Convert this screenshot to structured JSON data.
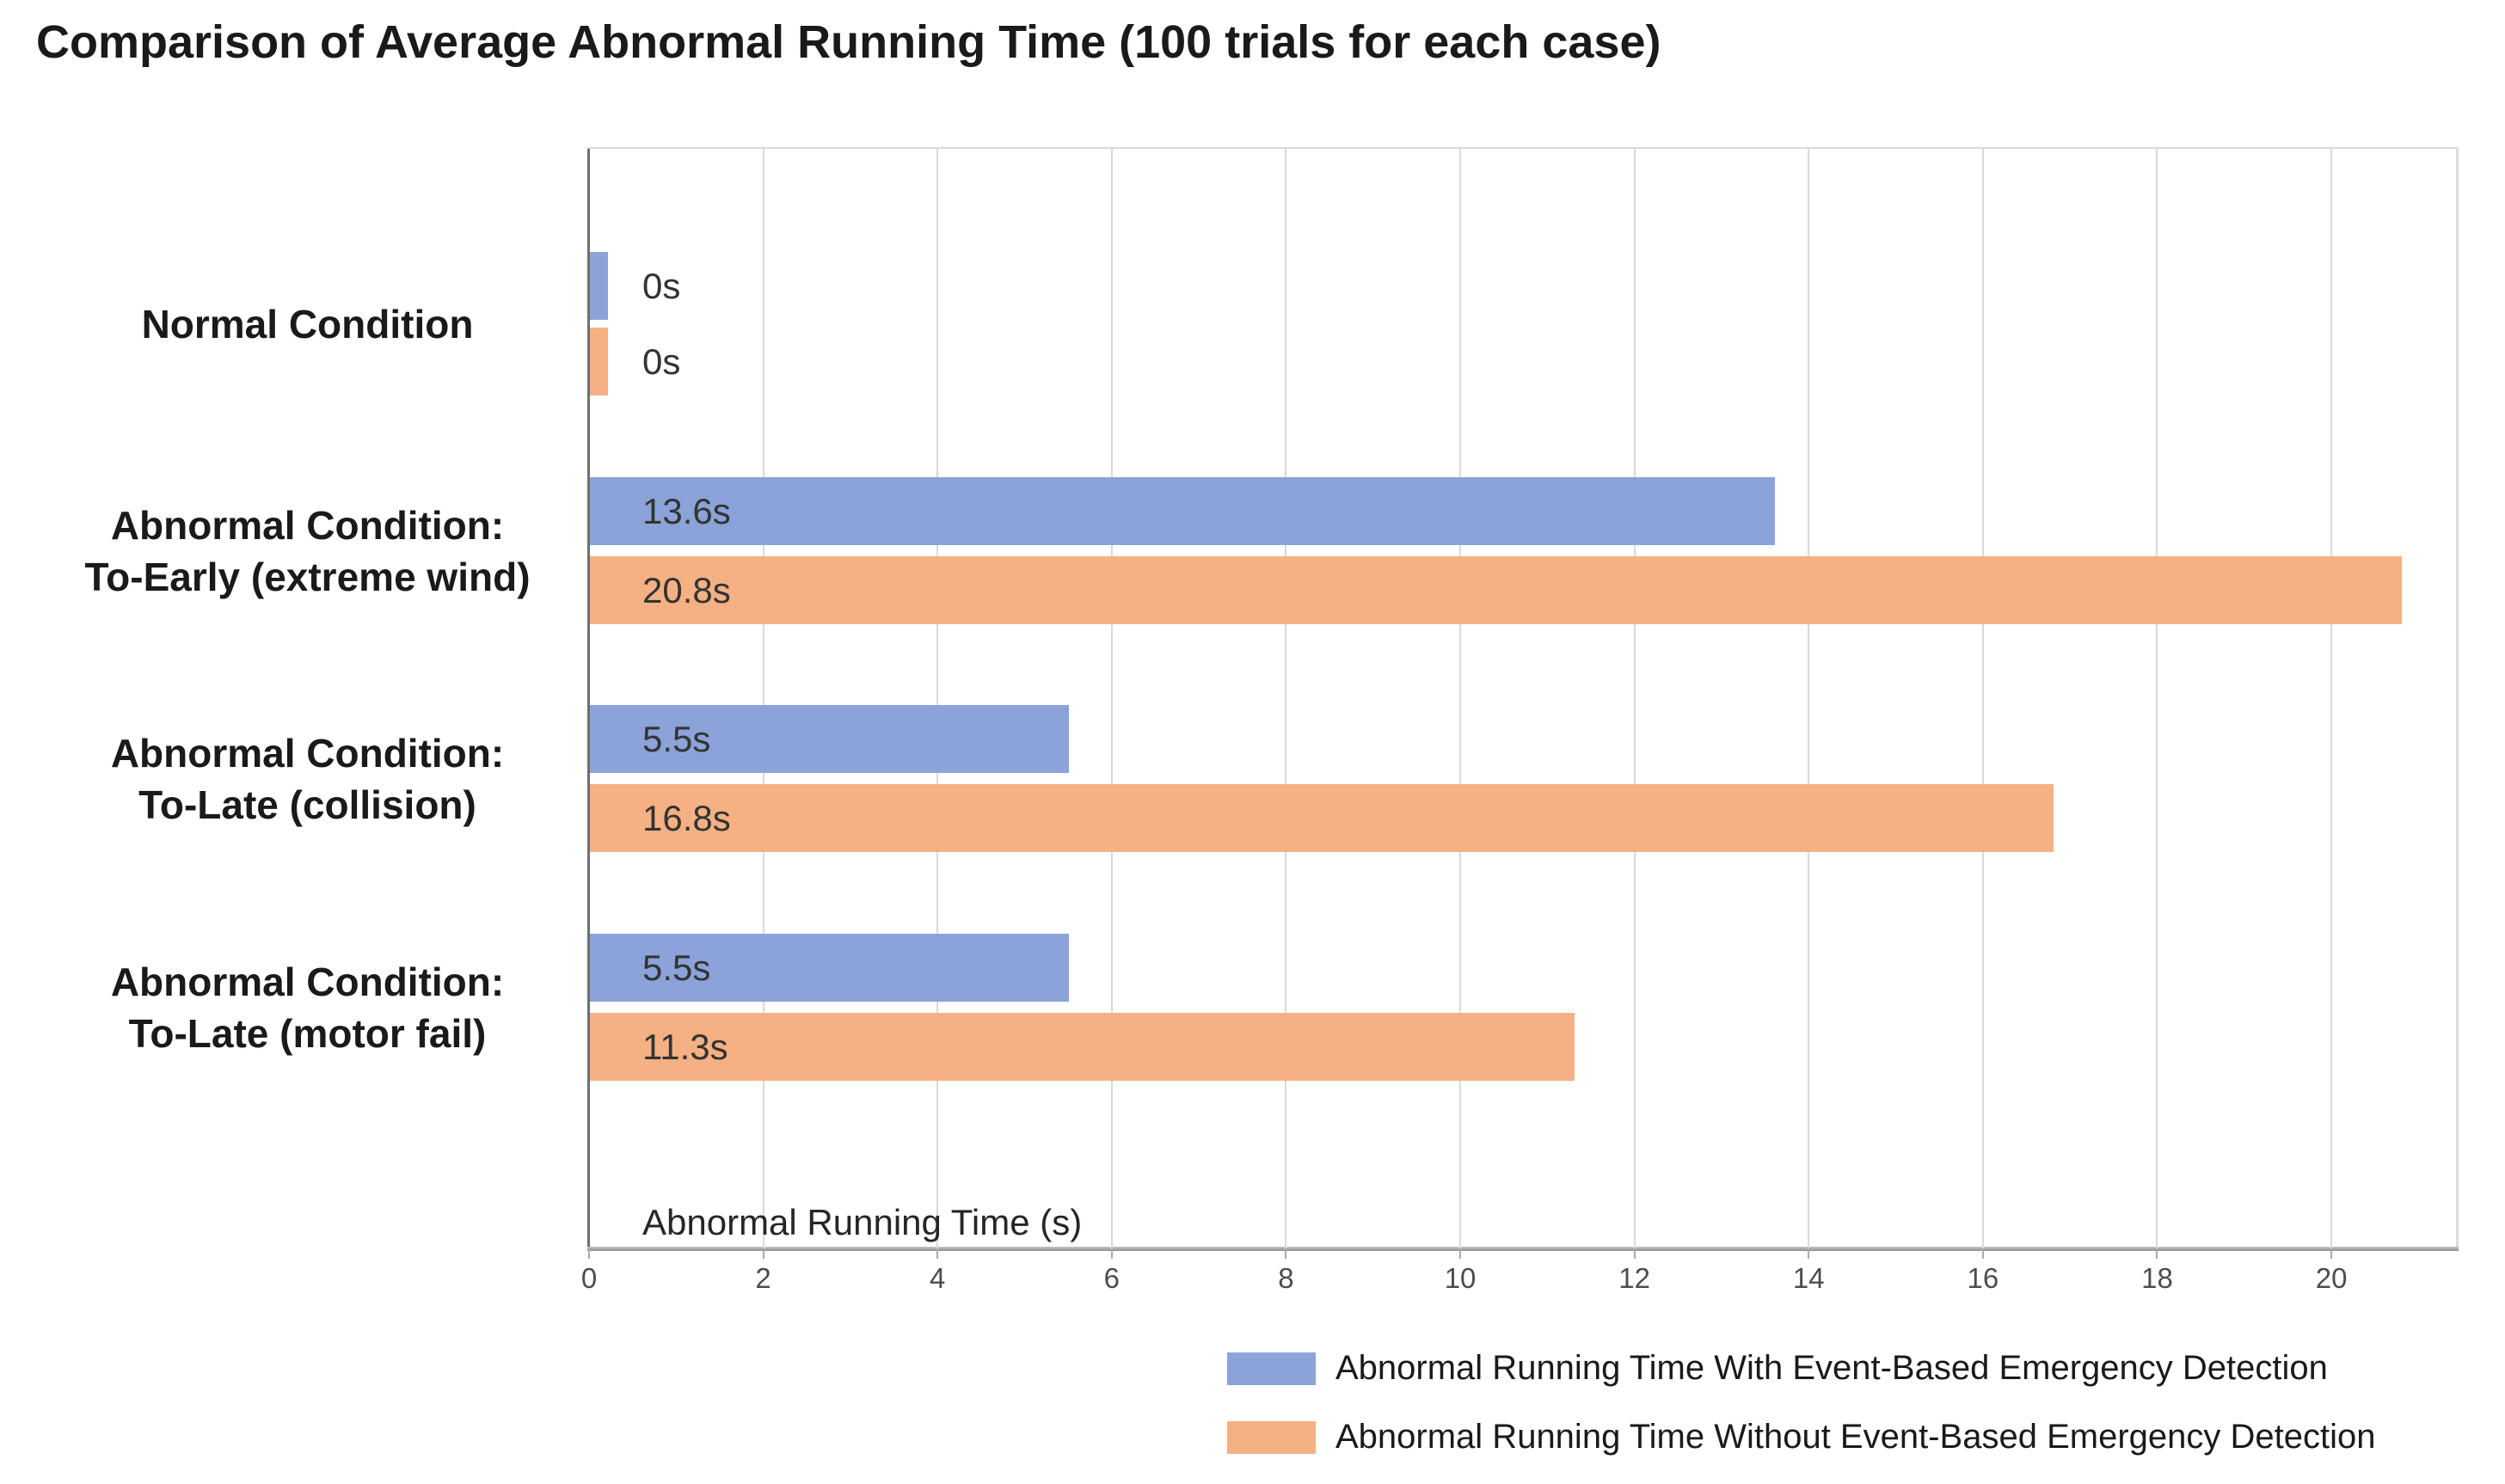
{
  "chart_data": {
    "type": "bar",
    "orientation": "horizontal",
    "title": "Comparison of Average Abnormal Running Time (100 trials for each case)",
    "xlabel": "Abnormal Running Time (s)",
    "categories": [
      {
        "lines": [
          "Normal Condition"
        ]
      },
      {
        "lines": [
          "Abnormal Condition:",
          "To-Early (extreme wind)"
        ]
      },
      {
        "lines": [
          "Abnormal Condition:",
          "To-Late (collision)"
        ]
      },
      {
        "lines": [
          "Abnormal Condition:",
          "To-Late (motor fail)"
        ]
      }
    ],
    "series": [
      {
        "name": "Abnormal Running Time With Event-Based Emergency Detection",
        "color": "#8BA3D9",
        "values": [
          0,
          13.6,
          5.5,
          5.5
        ],
        "value_labels": [
          "0s",
          "13.6s",
          "5.5s",
          "5.5s"
        ]
      },
      {
        "name": "Abnormal Running Time Without Event-Based Emergency Detection",
        "color": "#F5B183",
        "values": [
          0,
          20.8,
          16.8,
          11.3
        ],
        "value_labels": [
          "0s",
          "20.8s",
          "16.8s",
          "11.3s"
        ]
      }
    ],
    "x_ticks": [
      0,
      2,
      4,
      6,
      8,
      10,
      12,
      14,
      16,
      18,
      20
    ],
    "xlim": [
      0,
      21.45
    ],
    "grid": "vertical-major",
    "legend_position": "bottom-right",
    "colors": {
      "grid": "#D9D9D9",
      "axis_left": "#6F6F6F",
      "axis_bottom": "#9E9E9E",
      "plot_border": "#D9D9D9",
      "title_text": "#1A1A1A",
      "category_text": "#1A1A1A",
      "value_text": "#333333",
      "tick_text": "#4D4D4D",
      "legend_text": "#1A1A1A",
      "background": "#FFFFFF"
    }
  }
}
